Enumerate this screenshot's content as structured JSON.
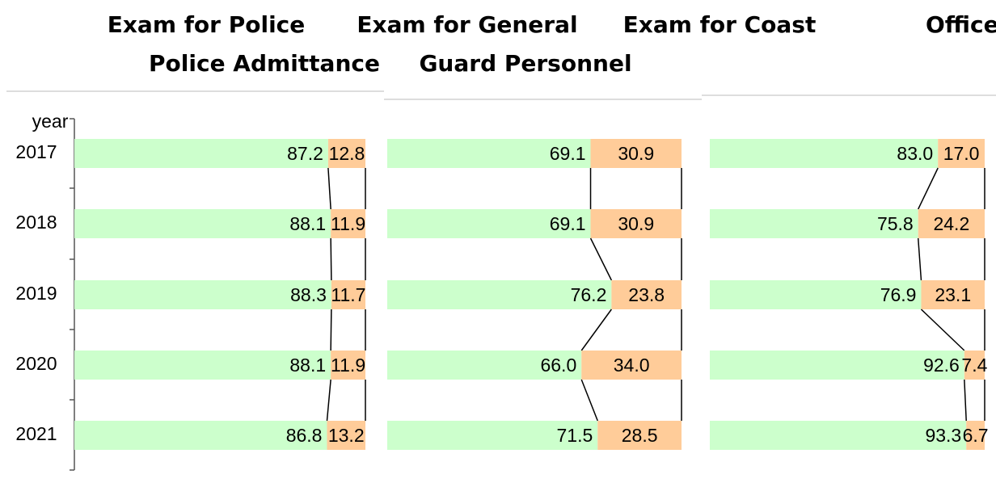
{
  "chart_data": [
    {
      "type": "bar",
      "stacked": true,
      "orientation": "horizontal",
      "title": [
        "Exam for Police",
        "Police Admittance"
      ],
      "y_label": "year",
      "categories": [
        "2017",
        "2018",
        "2019",
        "2020",
        "2021"
      ],
      "xlim": [
        0,
        100
      ],
      "series": [
        {
          "color": "#ccffcc",
          "values": [
            87.2,
            88.1,
            88.3,
            88.1,
            86.8
          ],
          "value_labels": [
            "87.2",
            "88.1",
            "88.3",
            "88.1",
            "86.8"
          ]
        },
        {
          "color": "#ffcc99",
          "values": [
            12.8,
            11.9,
            11.7,
            11.9,
            13.2
          ],
          "value_labels": [
            "12.8",
            "11.9",
            "11.7",
            "11.9",
            "13.2"
          ]
        }
      ]
    },
    {
      "type": "bar",
      "stacked": true,
      "orientation": "horizontal",
      "title": [
        "Exam for General",
        "Guard Personnel"
      ],
      "xlim": [
        0,
        100
      ],
      "series": [
        {
          "color": "#ccffcc",
          "values": [
            69.1,
            69.1,
            76.2,
            66.0,
            71.5
          ],
          "value_labels": [
            "69.1",
            "69.1",
            "76.2",
            "66.0",
            "71.5"
          ]
        },
        {
          "color": "#ffcc99",
          "values": [
            30.9,
            30.9,
            23.8,
            34.0,
            28.5
          ],
          "value_labels": [
            "30.9",
            "30.9",
            "23.8",
            "34.0",
            "28.5"
          ]
        }
      ]
    },
    {
      "type": "bar",
      "stacked": true,
      "orientation": "horizontal",
      "title": [
        "Exam for Coast",
        "Officers"
      ],
      "xlim": [
        0,
        100
      ],
      "series": [
        {
          "color": "#ccffcc",
          "values": [
            83.0,
            75.8,
            76.9,
            92.6,
            93.3
          ],
          "value_labels": [
            "83.0",
            "75.8",
            "76.9",
            "92.6",
            "93.3"
          ]
        },
        {
          "color": "#ffcc99",
          "values": [
            17.0,
            24.2,
            23.1,
            7.4,
            6.7
          ],
          "value_labels": [
            "17.0",
            "24.2",
            "23.1",
            "7.4",
            "6.7"
          ]
        }
      ]
    }
  ]
}
